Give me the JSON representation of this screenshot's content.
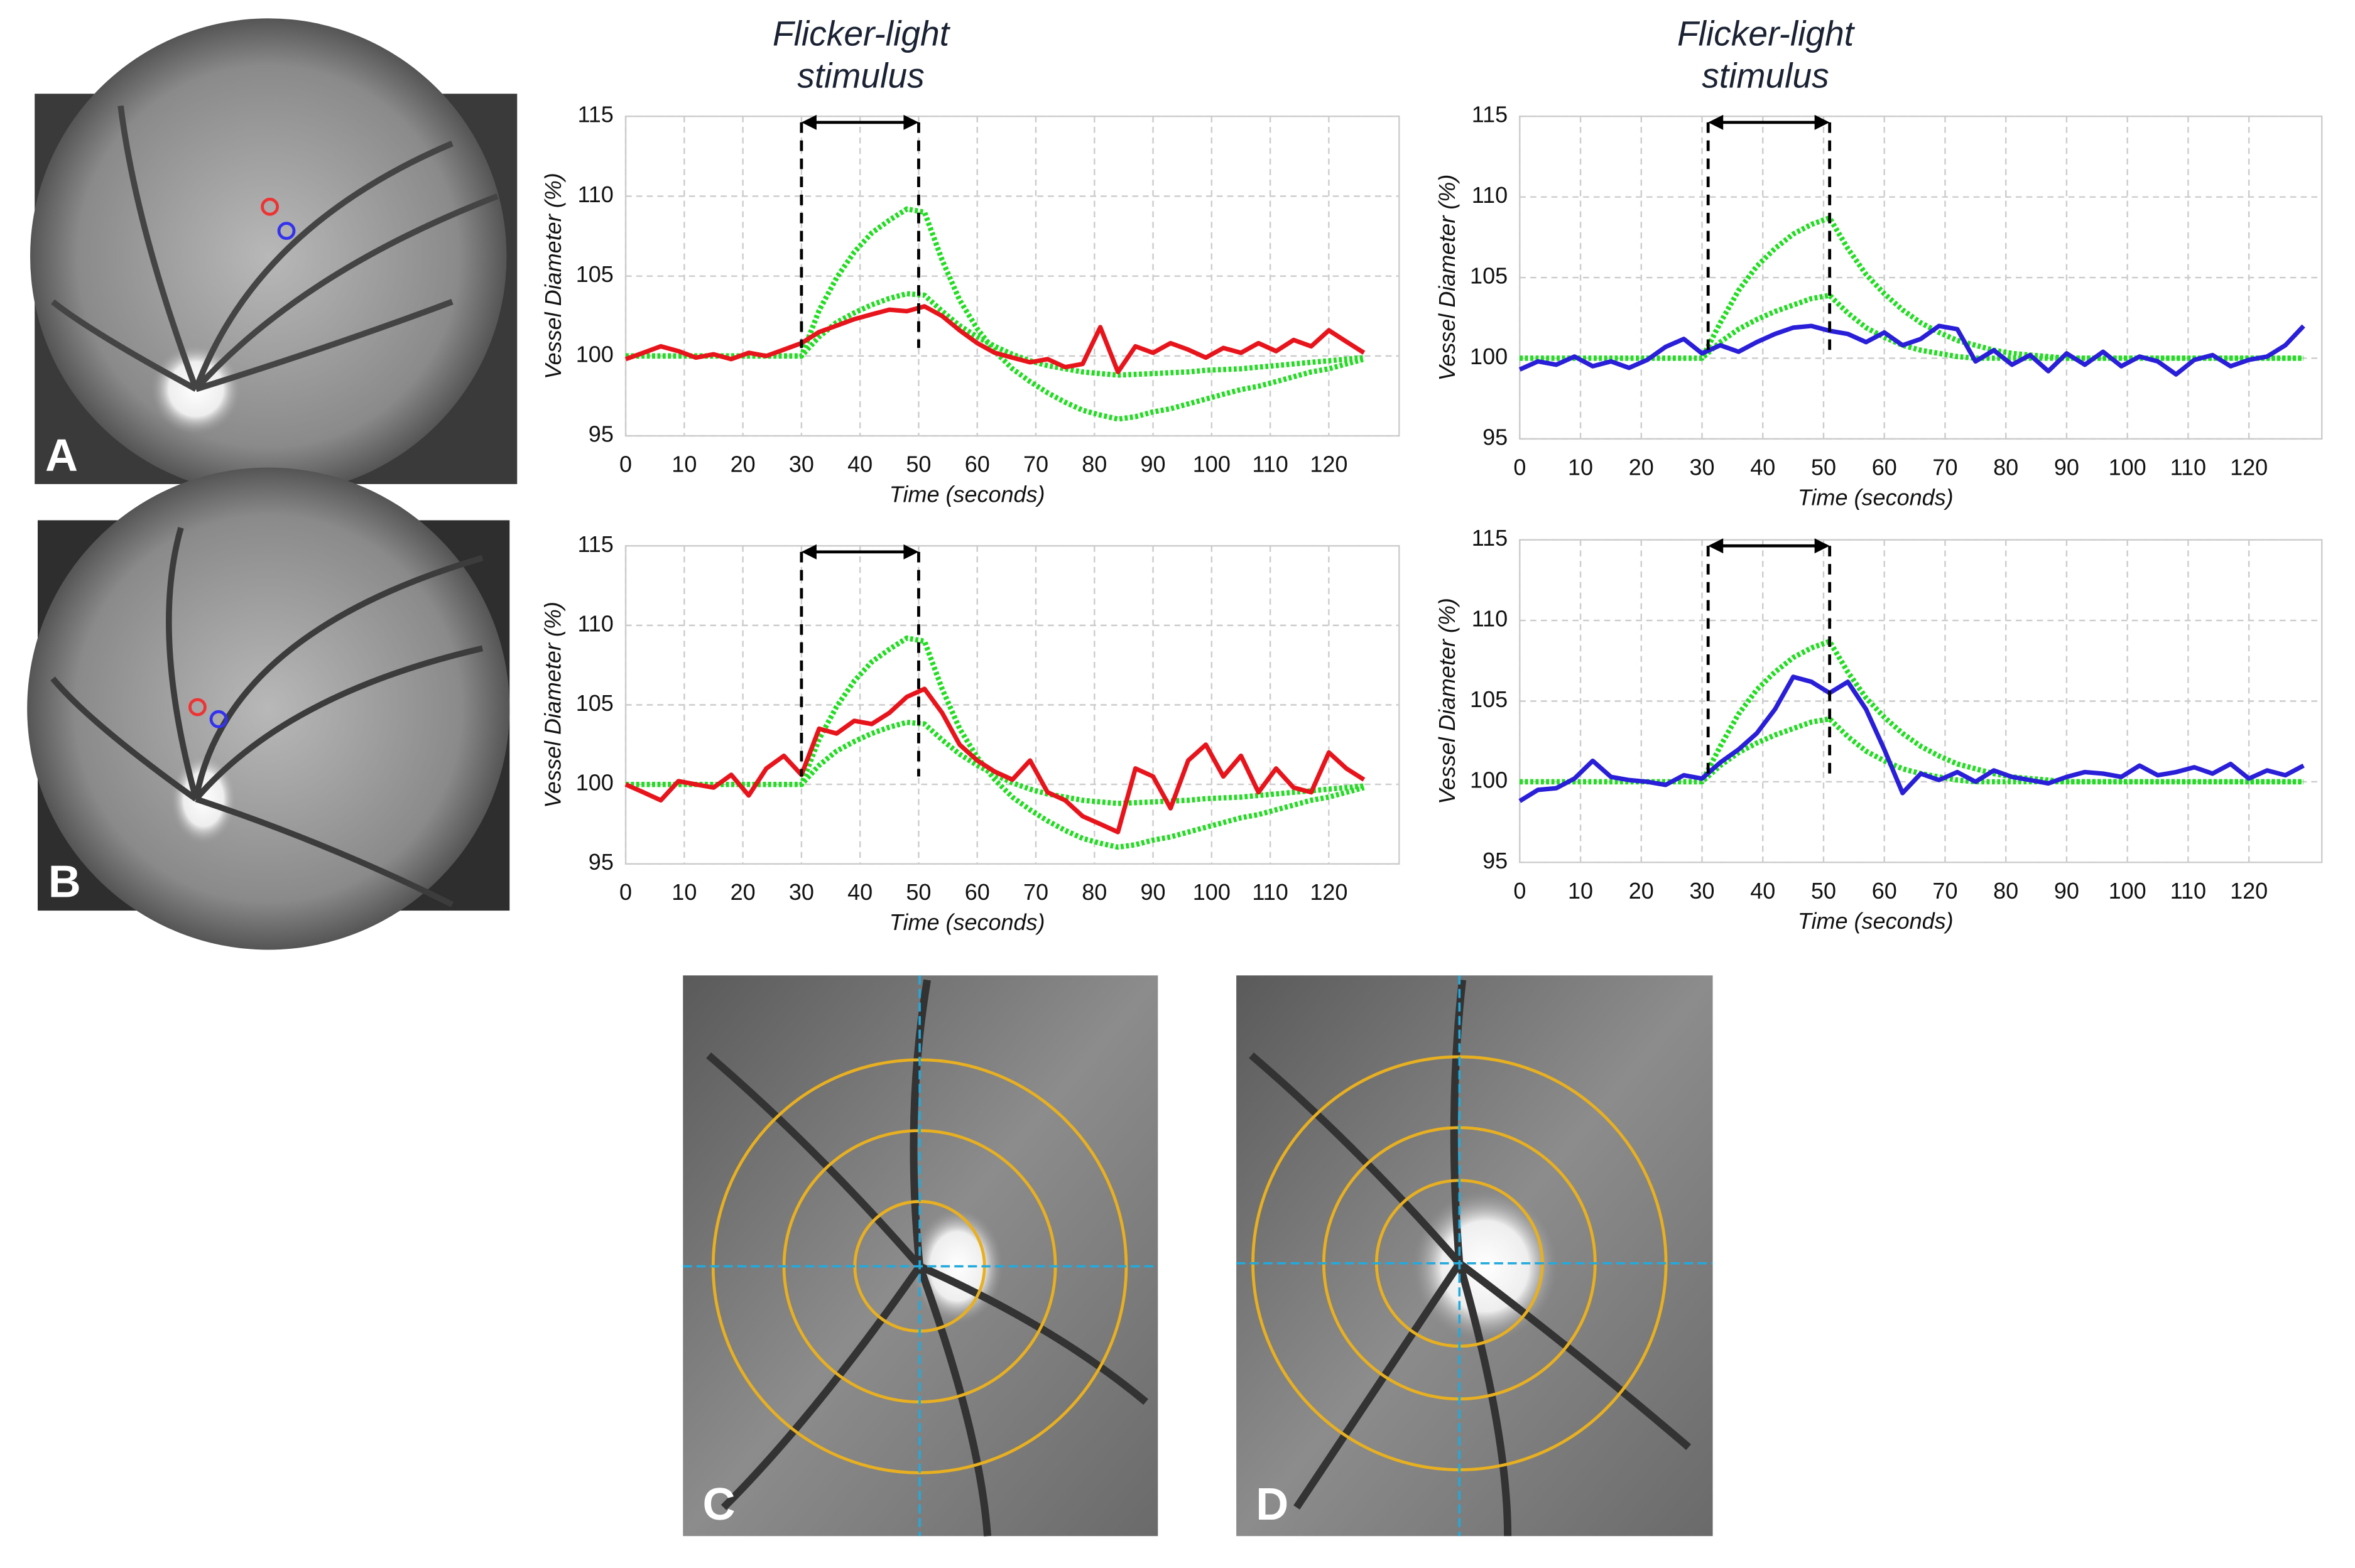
{
  "panel_labels": [
    "A",
    "B",
    "C",
    "D"
  ],
  "chart_data": [
    {
      "type": "line",
      "title": "Flicker-light stimulus",
      "xlabel": "Time (seconds)",
      "ylabel": "Vessel Diameter (%)",
      "x": [
        0,
        3,
        6,
        9,
        12,
        15,
        18,
        21,
        24,
        27,
        30,
        33,
        36,
        39,
        42,
        45,
        48,
        51,
        54,
        57,
        60,
        63,
        66,
        69,
        72,
        75,
        78,
        81,
        84,
        87,
        90,
        93,
        96,
        99,
        102,
        105,
        108,
        111,
        114,
        117,
        120,
        123,
        126
      ],
      "xlim": [
        0,
        132
      ],
      "ylim": [
        95,
        115
      ],
      "xticks": [
        0,
        10,
        20,
        30,
        40,
        50,
        60,
        70,
        80,
        90,
        100,
        110,
        120
      ],
      "yticks": [
        95,
        100,
        105,
        110,
        115
      ],
      "grid": true,
      "stimulus": [
        30,
        50
      ],
      "series": [
        {
          "color": "#e8141c",
          "values": [
            99.8,
            100.2,
            100.6,
            100.3,
            99.9,
            100.1,
            99.8,
            100.2,
            100.0,
            100.4,
            100.8,
            101.5,
            101.9,
            102.3,
            102.6,
            102.9,
            102.8,
            103.1,
            102.5,
            101.6,
            100.8,
            100.2,
            99.9,
            99.6,
            99.8,
            99.3,
            99.5,
            101.8,
            99.0,
            100.6,
            100.2,
            100.8,
            100.4,
            99.9,
            100.5,
            100.2,
            100.8,
            100.3,
            101.0,
            100.6,
            101.6,
            100.9,
            100.2
          ]
        },
        {
          "color": "#22dd22",
          "values": [
            100,
            100,
            100,
            100,
            100,
            100,
            100,
            100,
            100,
            100,
            100,
            102.85,
            104.9,
            106.5,
            107.7,
            108.5,
            109.2,
            109.0,
            106,
            103.5,
            101.7,
            100.3,
            99.2,
            98.4,
            97.7,
            97.1,
            96.6,
            96.3,
            96.05,
            96.2,
            96.5,
            96.7,
            97.0,
            97.3,
            97.6,
            97.9,
            98.1,
            98.4,
            98.7,
            99.0,
            99.2,
            99.5,
            99.8
          ]
        },
        {
          "color": "#22dd22",
          "values": [
            100,
            100,
            100,
            100,
            100,
            100,
            100,
            100,
            100,
            100,
            100,
            101.2,
            102.1,
            102.7,
            103.2,
            103.6,
            103.9,
            103.8,
            102.8,
            101.9,
            101.2,
            100.6,
            100.1,
            99.7,
            99.4,
            99.2,
            99.0,
            98.9,
            98.8,
            98.85,
            98.9,
            98.95,
            99.0,
            99.1,
            99.15,
            99.2,
            99.3,
            99.4,
            99.5,
            99.6,
            99.7,
            99.8,
            99.9
          ]
        }
      ]
    },
    {
      "type": "line",
      "title": "Flicker-light stimulus",
      "xlabel": "Time (seconds)",
      "ylabel": "Vessel Diameter (%)",
      "x": [
        0,
        3,
        6,
        9,
        12,
        15,
        18,
        21,
        24,
        27,
        30,
        33,
        36,
        39,
        42,
        45,
        48,
        51,
        54,
        57,
        60,
        63,
        66,
        69,
        72,
        75,
        78,
        81,
        84,
        87,
        90,
        93,
        96,
        99,
        102,
        105,
        108,
        111,
        114,
        117,
        120,
        123,
        126,
        129
      ],
      "xlim": [
        0,
        132
      ],
      "ylim": [
        95,
        115
      ],
      "xticks": [
        0,
        10,
        20,
        30,
        40,
        50,
        60,
        70,
        80,
        90,
        100,
        110,
        120
      ],
      "yticks": [
        95,
        100,
        105,
        110,
        115
      ],
      "grid": true,
      "stimulus": [
        31,
        51
      ],
      "series": [
        {
          "color": "#2a1fd8",
          "values": [
            99.3,
            99.8,
            99.6,
            100.1,
            99.5,
            99.8,
            99.4,
            99.9,
            100.7,
            101.2,
            100.3,
            100.8,
            100.4,
            101.0,
            101.5,
            101.9,
            102.0,
            101.7,
            101.5,
            101.0,
            101.6,
            100.8,
            101.2,
            102.0,
            101.8,
            99.8,
            100.5,
            99.6,
            100.2,
            99.2,
            100.3,
            99.6,
            100.4,
            99.5,
            100.1,
            99.8,
            99.0,
            99.9,
            100.2,
            99.5,
            99.9,
            100.1,
            100.8,
            102.0
          ]
        },
        {
          "color": "#22dd22",
          "values": [
            100,
            100,
            100,
            100,
            100,
            100,
            100,
            100,
            100,
            100,
            100,
            102.2,
            104.2,
            105.7,
            106.8,
            107.7,
            108.3,
            108.7,
            106.8,
            105.2,
            104.0,
            103.0,
            102.2,
            101.6,
            101.1,
            100.8,
            100.5,
            100.3,
            100.2,
            100.1,
            100,
            100,
            100,
            100,
            100,
            100,
            100,
            100,
            100,
            100,
            100,
            100,
            100,
            100
          ]
        },
        {
          "color": "#22dd22",
          "values": [
            100,
            100,
            100,
            100,
            100,
            100,
            100,
            100,
            100,
            100,
            100,
            101.0,
            101.8,
            102.4,
            102.9,
            103.3,
            103.7,
            103.9,
            102.8,
            101.9,
            101.3,
            100.8,
            100.5,
            100.3,
            100.1,
            100,
            100,
            100,
            100,
            100,
            100,
            100,
            100,
            100,
            100,
            100,
            100,
            100,
            100,
            100,
            100,
            100,
            100,
            100
          ]
        }
      ]
    },
    {
      "type": "line",
      "xlabel": "Time (seconds)",
      "ylabel": "Vessel Diameter (%)",
      "x": [
        0,
        3,
        6,
        9,
        12,
        15,
        18,
        21,
        24,
        27,
        30,
        33,
        36,
        39,
        42,
        45,
        48,
        51,
        54,
        57,
        60,
        63,
        66,
        69,
        72,
        75,
        78,
        81,
        84,
        87,
        90,
        93,
        96,
        99,
        102,
        105,
        108,
        111,
        114,
        117,
        120,
        123,
        126
      ],
      "xlim": [
        0,
        132
      ],
      "ylim": [
        95,
        115
      ],
      "xticks": [
        0,
        10,
        20,
        30,
        40,
        50,
        60,
        70,
        80,
        90,
        100,
        110,
        120
      ],
      "yticks": [
        95,
        100,
        105,
        110,
        115
      ],
      "grid": true,
      "stimulus": [
        30,
        50
      ],
      "series": [
        {
          "color": "#e8141c",
          "values": [
            100,
            99.5,
            99.0,
            100.2,
            100.0,
            99.8,
            100.6,
            99.3,
            101.0,
            101.8,
            100.6,
            103.5,
            103.2,
            104.0,
            103.8,
            104.5,
            105.5,
            106.0,
            104.5,
            102.5,
            101.5,
            100.8,
            100.3,
            101.5,
            99.5,
            99.0,
            98.0,
            97.5,
            97.0,
            101.0,
            100.5,
            98.5,
            101.5,
            102.5,
            100.5,
            101.8,
            99.5,
            101.0,
            99.8,
            99.5,
            102.0,
            101.0,
            100.3
          ]
        },
        {
          "color": "#22dd22",
          "values": [
            100,
            100,
            100,
            100,
            100,
            100,
            100,
            100,
            100,
            100,
            100,
            102.85,
            104.9,
            106.5,
            107.7,
            108.5,
            109.2,
            109.0,
            106,
            103.5,
            101.7,
            100.3,
            99.2,
            98.4,
            97.7,
            97.1,
            96.6,
            96.3,
            96.05,
            96.2,
            96.5,
            96.7,
            97.0,
            97.3,
            97.6,
            97.9,
            98.1,
            98.4,
            98.7,
            99.0,
            99.2,
            99.5,
            99.8
          ]
        },
        {
          "color": "#22dd22",
          "values": [
            100,
            100,
            100,
            100,
            100,
            100,
            100,
            100,
            100,
            100,
            100,
            101.2,
            102.1,
            102.7,
            103.2,
            103.6,
            103.9,
            103.8,
            102.8,
            101.9,
            101.2,
            100.6,
            100.1,
            99.7,
            99.4,
            99.2,
            99.0,
            98.9,
            98.8,
            98.85,
            98.9,
            98.95,
            99.0,
            99.1,
            99.15,
            99.2,
            99.3,
            99.4,
            99.5,
            99.6,
            99.7,
            99.8,
            99.9
          ]
        }
      ]
    },
    {
      "type": "line",
      "xlabel": "Time (seconds)",
      "ylabel": "Vessel Diameter (%)",
      "x": [
        0,
        3,
        6,
        9,
        12,
        15,
        18,
        21,
        24,
        27,
        30,
        33,
        36,
        39,
        42,
        45,
        48,
        51,
        54,
        57,
        60,
        63,
        66,
        69,
        72,
        75,
        78,
        81,
        84,
        87,
        90,
        93,
        96,
        99,
        102,
        105,
        108,
        111,
        114,
        117,
        120,
        123,
        126,
        129
      ],
      "xlim": [
        0,
        132
      ],
      "ylim": [
        95,
        115
      ],
      "xticks": [
        0,
        10,
        20,
        30,
        40,
        50,
        60,
        70,
        80,
        90,
        100,
        110,
        120
      ],
      "yticks": [
        95,
        100,
        105,
        110,
        115
      ],
      "grid": true,
      "stimulus": [
        31,
        51
      ],
      "series": [
        {
          "color": "#2a1fd8",
          "values": [
            98.8,
            99.5,
            99.6,
            100.2,
            101.3,
            100.3,
            100.1,
            100.0,
            99.8,
            100.4,
            100.2,
            101.2,
            102.0,
            103.0,
            104.5,
            106.5,
            106.2,
            105.5,
            106.2,
            104.5,
            102.0,
            99.3,
            100.5,
            100.1,
            100.6,
            100.0,
            100.7,
            100.3,
            100.1,
            99.9,
            100.3,
            100.6,
            100.5,
            100.3,
            101.0,
            100.4,
            100.6,
            100.9,
            100.5,
            101.1,
            100.2,
            100.7,
            100.4,
            101.0
          ]
        },
        {
          "color": "#22dd22",
          "values": [
            100,
            100,
            100,
            100,
            100,
            100,
            100,
            100,
            100,
            100,
            100,
            102.2,
            104.2,
            105.7,
            106.8,
            107.7,
            108.3,
            108.7,
            106.8,
            105.2,
            104.0,
            103.0,
            102.2,
            101.6,
            101.1,
            100.8,
            100.5,
            100.3,
            100.2,
            100.1,
            100,
            100,
            100,
            100,
            100,
            100,
            100,
            100,
            100,
            100,
            100,
            100,
            100,
            100
          ]
        },
        {
          "color": "#22dd22",
          "values": [
            100,
            100,
            100,
            100,
            100,
            100,
            100,
            100,
            100,
            100,
            100,
            101.0,
            101.8,
            102.4,
            102.9,
            103.3,
            103.7,
            103.9,
            102.8,
            101.9,
            101.3,
            100.8,
            100.5,
            100.3,
            100.1,
            100,
            100,
            100,
            100,
            100,
            100,
            100,
            100,
            100,
            100,
            100,
            100,
            100,
            100,
            100,
            100,
            100,
            100,
            100
          ]
        }
      ]
    }
  ]
}
